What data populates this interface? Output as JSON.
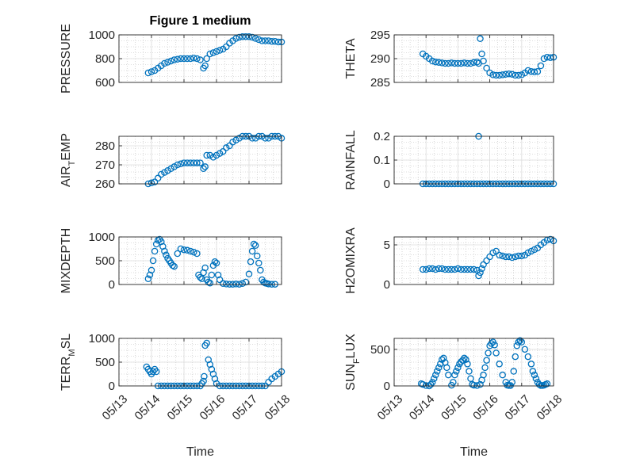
{
  "figure_title": "Figure 1 medium",
  "marker_color": "#0072BD",
  "chart_data": [
    {
      "type": "scatter",
      "title": "Figure 1 medium",
      "ylabel": "PRESSURE",
      "xlabel": "",
      "ylim": [
        600,
        1000
      ],
      "yticks": [
        600,
        800,
        1000
      ],
      "xlim": [
        13,
        18
      ],
      "grid": true,
      "x": [
        13.9,
        14.0,
        14.1,
        14.2,
        14.3,
        14.4,
        14.5,
        14.6,
        14.7,
        14.8,
        14.9,
        15.0,
        15.1,
        15.2,
        15.3,
        15.4,
        15.5,
        15.6,
        15.65,
        15.7,
        15.8,
        15.9,
        16.0,
        16.1,
        16.2,
        16.3,
        16.4,
        16.5,
        16.6,
        16.7,
        16.8,
        16.9,
        17.0,
        17.1,
        17.2,
        17.3,
        17.4,
        17.5,
        17.6,
        17.7,
        17.8,
        17.9,
        18.0
      ],
      "y": [
        680,
        690,
        700,
        720,
        740,
        760,
        770,
        780,
        790,
        795,
        800,
        800,
        800,
        800,
        805,
        800,
        790,
        720,
        740,
        800,
        840,
        850,
        860,
        870,
        880,
        900,
        930,
        950,
        970,
        980,
        985,
        985,
        985,
        980,
        970,
        960,
        950,
        950,
        950,
        945,
        945,
        940,
        940
      ]
    },
    {
      "type": "scatter",
      "ylabel": "THETA",
      "xlabel": "",
      "ylim": [
        285,
        295
      ],
      "yticks": [
        285,
        290,
        295
      ],
      "xlim": [
        13,
        18
      ],
      "grid": true,
      "x": [
        13.9,
        14.0,
        14.1,
        14.2,
        14.3,
        14.4,
        14.5,
        14.6,
        14.7,
        14.8,
        14.9,
        15.0,
        15.1,
        15.2,
        15.3,
        15.4,
        15.5,
        15.6,
        15.65,
        15.7,
        15.75,
        15.8,
        15.9,
        16.0,
        16.1,
        16.2,
        16.3,
        16.4,
        16.5,
        16.6,
        16.7,
        16.8,
        16.9,
        17.0,
        17.1,
        17.2,
        17.3,
        17.4,
        17.5,
        17.6,
        17.7,
        17.8,
        17.9,
        18.0
      ],
      "y": [
        291,
        290.5,
        290,
        289.5,
        289.3,
        289.2,
        289.1,
        289.0,
        289.0,
        289.1,
        289.0,
        289.0,
        289.0,
        289.1,
        289.0,
        289.0,
        289.2,
        289.3,
        289.0,
        294.2,
        291.0,
        289.5,
        288.0,
        287.0,
        286.6,
        286.5,
        286.5,
        286.6,
        286.7,
        286.8,
        286.7,
        286.5,
        286.5,
        286.6,
        287.0,
        287.5,
        287.3,
        287.2,
        287.3,
        288.5,
        290.0,
        290.3,
        290.2,
        290.3
      ]
    },
    {
      "type": "scatter",
      "ylabel": "AIR_TEMP",
      "xlabel": "",
      "ylim": [
        260,
        285
      ],
      "yticks": [
        260,
        270,
        280
      ],
      "xlim": [
        13,
        18
      ],
      "grid": true,
      "x": [
        13.9,
        14.0,
        14.1,
        14.2,
        14.3,
        14.4,
        14.5,
        14.6,
        14.7,
        14.8,
        14.9,
        15.0,
        15.1,
        15.2,
        15.3,
        15.4,
        15.5,
        15.6,
        15.65,
        15.7,
        15.8,
        15.9,
        16.0,
        16.1,
        16.2,
        16.3,
        16.4,
        16.5,
        16.6,
        16.7,
        16.8,
        16.9,
        17.0,
        17.1,
        17.2,
        17.3,
        17.4,
        17.5,
        17.6,
        17.7,
        17.8,
        17.9,
        18.0
      ],
      "y": [
        260,
        260.5,
        261,
        263,
        265,
        266,
        267,
        268,
        269,
        270,
        270.5,
        271,
        271,
        271,
        271,
        271,
        271,
        268,
        269,
        275,
        275,
        274,
        275,
        276,
        277,
        279,
        280,
        282,
        283,
        284,
        285,
        285,
        285,
        284,
        284,
        285,
        285,
        284,
        284,
        285,
        285,
        285,
        284
      ]
    },
    {
      "type": "scatter",
      "ylabel": "RAINFALL",
      "xlabel": "",
      "ylim": [
        0,
        0.2
      ],
      "yticks": [
        0,
        0.1,
        0.2
      ],
      "xlim": [
        13,
        18
      ],
      "grid": true,
      "x": [
        13.9,
        14.0,
        14.1,
        14.2,
        14.3,
        14.4,
        14.5,
        14.6,
        14.7,
        14.8,
        14.9,
        15.0,
        15.1,
        15.2,
        15.3,
        15.4,
        15.5,
        15.6,
        15.7,
        15.8,
        15.9,
        16.0,
        16.1,
        16.2,
        16.3,
        16.4,
        16.5,
        16.6,
        16.7,
        16.8,
        16.9,
        17.0,
        17.1,
        17.2,
        17.3,
        17.4,
        17.5,
        17.6,
        17.7,
        17.8,
        17.9,
        18.0,
        15.65
      ],
      "y": [
        0,
        0,
        0,
        0,
        0,
        0,
        0,
        0,
        0,
        0,
        0,
        0,
        0,
        0,
        0,
        0,
        0,
        0,
        0,
        0,
        0,
        0,
        0,
        0,
        0,
        0,
        0,
        0,
        0,
        0,
        0,
        0,
        0,
        0,
        0,
        0,
        0,
        0,
        0,
        0,
        0,
        0,
        0.2
      ]
    },
    {
      "type": "scatter",
      "ylabel": "MIXDEPTH",
      "xlabel": "",
      "ylim": [
        0,
        1000
      ],
      "yticks": [
        0,
        500,
        1000
      ],
      "xlim": [
        13,
        18
      ],
      "grid": true,
      "x": [
        13.9,
        13.95,
        14.0,
        14.05,
        14.1,
        14.15,
        14.2,
        14.25,
        14.3,
        14.35,
        14.4,
        14.45,
        14.5,
        14.55,
        14.6,
        14.65,
        14.7,
        14.8,
        14.9,
        15.0,
        15.1,
        15.2,
        15.3,
        15.4,
        15.45,
        15.5,
        15.55,
        15.6,
        15.65,
        15.7,
        15.75,
        15.8,
        15.85,
        15.9,
        15.95,
        16.0,
        16.05,
        16.1,
        16.2,
        16.3,
        16.4,
        16.5,
        16.6,
        16.7,
        16.8,
        16.9,
        17.0,
        17.05,
        17.1,
        17.15,
        17.2,
        17.25,
        17.3,
        17.35,
        17.4,
        17.45,
        17.5,
        17.55,
        17.6,
        17.7,
        17.8
      ],
      "y": [
        120,
        200,
        300,
        500,
        700,
        850,
        930,
        950,
        900,
        800,
        700,
        620,
        550,
        500,
        450,
        400,
        380,
        650,
        750,
        730,
        720,
        700,
        680,
        650,
        200,
        150,
        120,
        250,
        350,
        100,
        50,
        30,
        200,
        400,
        480,
        450,
        200,
        100,
        20,
        10,
        5,
        5,
        10,
        5,
        20,
        50,
        220,
        480,
        700,
        850,
        820,
        600,
        450,
        300,
        100,
        50,
        30,
        20,
        10,
        5,
        5
      ]
    },
    {
      "type": "scatter",
      "ylabel": "H2OMIXRA",
      "xlabel": "",
      "ylim": [
        0,
        6
      ],
      "yticks": [
        0,
        5
      ],
      "xlim": [
        13,
        18
      ],
      "grid": true,
      "x": [
        13.9,
        14.0,
        14.1,
        14.2,
        14.3,
        14.4,
        14.5,
        14.6,
        14.7,
        14.8,
        14.9,
        15.0,
        15.1,
        15.2,
        15.3,
        15.4,
        15.5,
        15.6,
        15.65,
        15.7,
        15.75,
        15.8,
        15.9,
        16.0,
        16.1,
        16.2,
        16.3,
        16.4,
        16.5,
        16.6,
        16.7,
        16.8,
        16.9,
        17.0,
        17.1,
        17.2,
        17.3,
        17.4,
        17.5,
        17.6,
        17.7,
        17.8,
        17.9,
        18.0
      ],
      "y": [
        1.9,
        1.9,
        2.0,
        2.0,
        1.9,
        2.0,
        2.0,
        1.9,
        1.9,
        1.9,
        1.9,
        2.0,
        1.9,
        1.9,
        1.9,
        1.9,
        1.9,
        1.8,
        1.1,
        1.5,
        2.0,
        2.5,
        3.0,
        3.5,
        4.0,
        4.2,
        3.7,
        3.6,
        3.5,
        3.5,
        3.4,
        3.5,
        3.6,
        3.6,
        3.7,
        4.0,
        4.2,
        4.4,
        4.6,
        5.0,
        5.3,
        5.6,
        5.7,
        5.5
      ]
    },
    {
      "type": "scatter",
      "ylabel": "TERR_MSL",
      "xlabel": "Time",
      "ylim": [
        0,
        1000
      ],
      "yticks": [
        0,
        500,
        1000
      ],
      "xlim": [
        13,
        18
      ],
      "xticks": [
        "05/13",
        "05/14",
        "05/15",
        "05/16",
        "05/17",
        "05/18"
      ],
      "grid": true,
      "x": [
        13.85,
        13.9,
        13.95,
        14.0,
        14.05,
        14.1,
        14.15,
        14.2,
        14.3,
        14.4,
        14.5,
        14.6,
        14.7,
        14.8,
        14.9,
        15.0,
        15.1,
        15.2,
        15.3,
        15.4,
        15.5,
        15.55,
        15.6,
        15.62,
        15.65,
        15.7,
        15.75,
        15.8,
        15.85,
        15.9,
        15.95,
        16.0,
        16.1,
        16.2,
        16.3,
        16.4,
        16.5,
        16.6,
        16.7,
        16.8,
        16.9,
        17.0,
        17.1,
        17.2,
        17.3,
        17.4,
        17.5,
        17.6,
        17.7,
        17.8,
        17.9,
        18.0
      ],
      "y": [
        400,
        350,
        300,
        250,
        300,
        350,
        300,
        0,
        0,
        0,
        0,
        0,
        0,
        0,
        0,
        0,
        0,
        0,
        0,
        0,
        0,
        50,
        100,
        200,
        850,
        900,
        550,
        450,
        350,
        250,
        150,
        50,
        0,
        0,
        0,
        0,
        0,
        0,
        0,
        0,
        0,
        0,
        0,
        0,
        0,
        0,
        0,
        80,
        150,
        200,
        250,
        300
      ]
    },
    {
      "type": "scatter",
      "ylabel": "SUN_FLUX",
      "xlabel": "Time",
      "ylim": [
        0,
        650
      ],
      "yticks": [
        0,
        500
      ],
      "xlim": [
        13,
        18
      ],
      "xticks": [
        "05/13",
        "05/14",
        "05/15",
        "05/16",
        "05/17",
        "05/18"
      ],
      "grid": true,
      "x": [
        13.85,
        13.9,
        14.0,
        14.1,
        14.15,
        14.2,
        14.25,
        14.3,
        14.35,
        14.4,
        14.45,
        14.5,
        14.55,
        14.6,
        14.65,
        14.7,
        14.8,
        14.85,
        14.9,
        14.95,
        15.0,
        15.05,
        15.1,
        15.15,
        15.2,
        15.25,
        15.3,
        15.35,
        15.4,
        15.45,
        15.5,
        15.6,
        15.7,
        15.75,
        15.8,
        15.85,
        15.9,
        15.95,
        16.0,
        16.05,
        16.1,
        16.15,
        16.2,
        16.3,
        16.4,
        16.5,
        16.55,
        16.6,
        16.65,
        16.7,
        16.75,
        16.8,
        16.85,
        16.9,
        16.95,
        17.0,
        17.1,
        17.2,
        17.3,
        17.35,
        17.4,
        17.45,
        17.5,
        17.55,
        17.6,
        17.65,
        17.7,
        17.75,
        17.8
      ],
      "y": [
        30,
        20,
        5,
        0,
        20,
        50,
        100,
        150,
        200,
        250,
        300,
        360,
        380,
        320,
        250,
        150,
        10,
        50,
        150,
        200,
        250,
        300,
        330,
        350,
        380,
        360,
        300,
        200,
        100,
        20,
        10,
        5,
        20,
        80,
        150,
        250,
        350,
        450,
        550,
        580,
        600,
        560,
        450,
        300,
        150,
        50,
        10,
        5,
        5,
        50,
        200,
        400,
        550,
        600,
        620,
        600,
        500,
        400,
        300,
        200,
        150,
        100,
        50,
        20,
        5,
        5,
        10,
        20,
        30
      ]
    }
  ]
}
